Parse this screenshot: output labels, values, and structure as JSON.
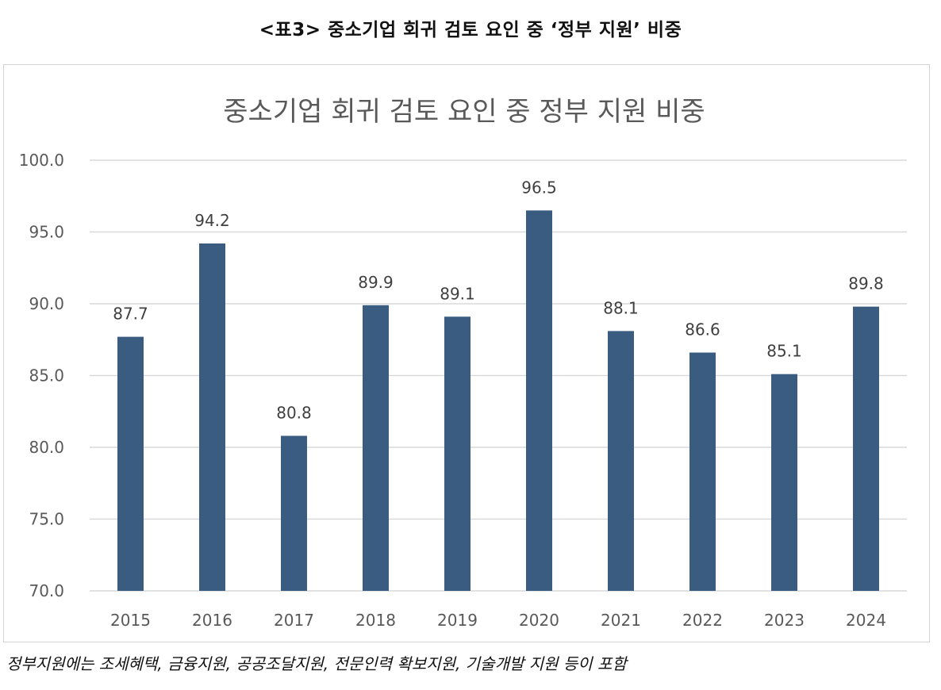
{
  "caption": "<표3> 중소기업 회귀 검토 요인 중 ‘정부 지원’ 비중",
  "footnote": "정부지원에는 조세혜택, 금융지원, 공공조달지원, 전문인력 확보지원, 기술개발 지원 등이 포함",
  "colors": {
    "bar": "#3a5c80",
    "grid": "#d9d9d9",
    "text": "#595959"
  },
  "chart_data": {
    "type": "bar",
    "title": "중소기업 회귀 검토 요인 중 정부 지원 비중",
    "categories": [
      "2015",
      "2016",
      "2017",
      "2018",
      "2019",
      "2020",
      "2021",
      "2022",
      "2023",
      "2024"
    ],
    "values": [
      87.7,
      94.2,
      80.8,
      89.9,
      89.1,
      96.5,
      88.1,
      86.6,
      85.1,
      89.8
    ],
    "value_labels": [
      "87.7",
      "94.2",
      "80.8",
      "89.9",
      "89.1",
      "96.5",
      "88.1",
      "86.6",
      "85.1",
      "89.8"
    ],
    "y_ticks": [
      "70.0",
      "75.0",
      "80.0",
      "85.0",
      "90.0",
      "95.0",
      "100.0"
    ],
    "ylim": [
      70,
      100
    ],
    "grid": true,
    "legend": "none"
  }
}
